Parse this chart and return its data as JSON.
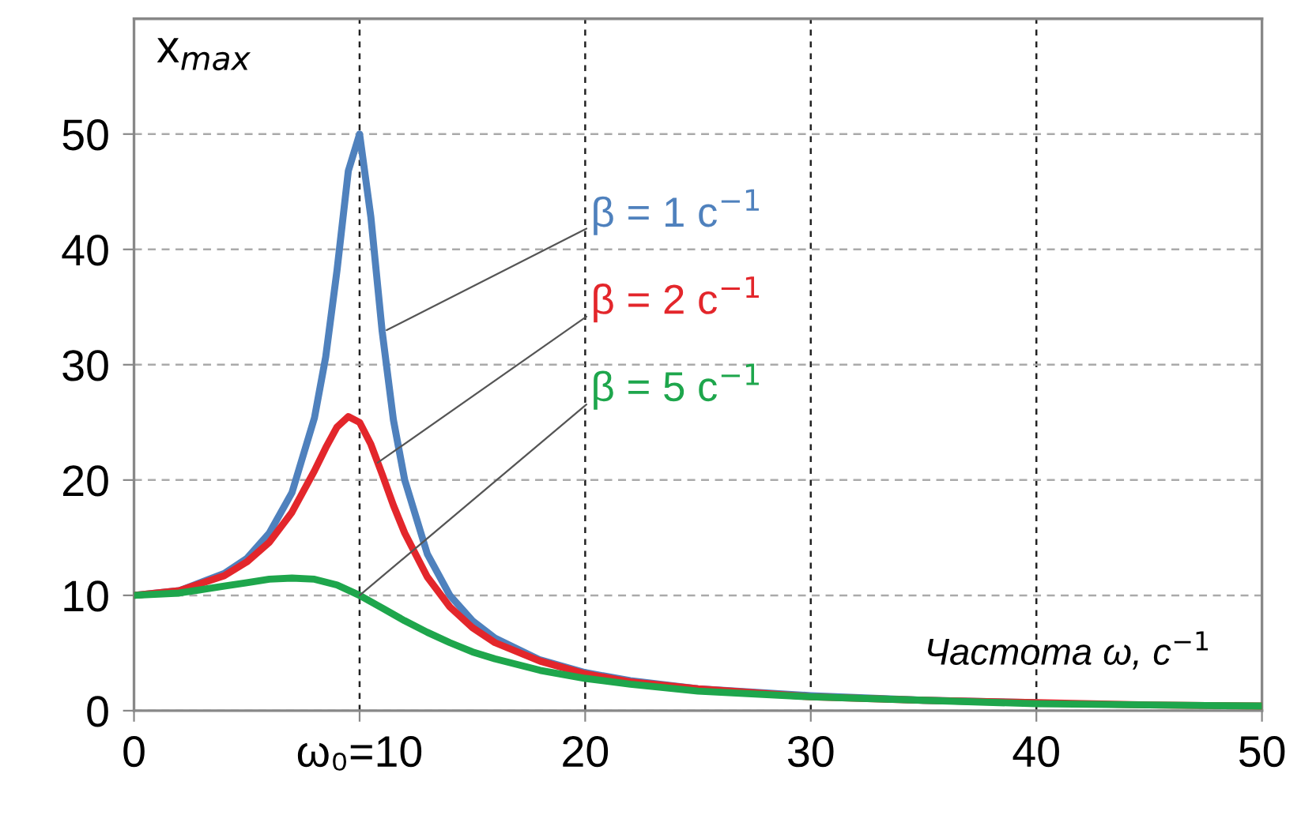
{
  "chart_data": {
    "type": "line",
    "ylabel": "x$_{max}$",
    "xlabel": "Частота ω, c$^{−1}$",
    "xlim": [
      0,
      50
    ],
    "xticks": [
      0,
      {
        "value": 10,
        "label": "ω₀=10"
      },
      20,
      30,
      40,
      50
    ],
    "ylim": [
      0,
      60
    ],
    "yticks": [
      0,
      10,
      20,
      30,
      40,
      50
    ],
    "grid": true,
    "marker": "none",
    "line_style": "solid",
    "series": [
      {
        "color": "#4f81bd",
        "x": [
          0,
          2,
          4,
          5,
          6,
          7,
          8,
          8.5,
          9,
          9.5,
          10,
          10.5,
          11,
          11.5,
          12,
          13,
          14,
          15,
          16,
          18,
          20,
          22,
          25,
          30,
          35,
          40
        ],
        "values": [
          10,
          10.4,
          11.9,
          13.2,
          15.4,
          18.9,
          25.4,
          30.7,
          38.2,
          46.8,
          50,
          42.8,
          32.9,
          25.2,
          20,
          13.6,
          10,
          7.8,
          6.3,
          4.4,
          3.3,
          2.6,
          1.9,
          1.3,
          0.9,
          0.7
        ]
      },
      {
        "color": "#e3262b",
        "x": [
          0,
          2,
          4,
          5,
          6,
          7,
          8,
          8.5,
          9,
          9.5,
          10,
          10.5,
          11,
          11.5,
          12,
          13,
          14,
          15,
          16,
          18,
          20,
          22,
          25,
          30,
          35,
          40,
          45,
          50
        ],
        "values": [
          10,
          10.4,
          11.7,
          12.9,
          14.6,
          17.2,
          20.8,
          22.8,
          24.6,
          25.5,
          25,
          23.1,
          20.5,
          17.8,
          15.4,
          11.6,
          9,
          7.2,
          5.9,
          4.3,
          3.2,
          2.5,
          1.9,
          1.2,
          0.9,
          0.7,
          0.5,
          0.4
        ]
      },
      {
        "color": "#1ea64c",
        "x": [
          0,
          2,
          4,
          5,
          6,
          7,
          8,
          9,
          10,
          11,
          12,
          13,
          14,
          15,
          16,
          18,
          20,
          22,
          25,
          30,
          35,
          40,
          45,
          50
        ],
        "values": [
          10,
          10.2,
          10.8,
          11.1,
          11.4,
          11.5,
          11.4,
          10.9,
          10,
          8.9,
          7.8,
          6.8,
          5.9,
          5.1,
          4.5,
          3.5,
          2.8,
          2.3,
          1.7,
          1.2,
          0.9,
          0.6,
          0.5,
          0.4
        ]
      }
    ],
    "annotations": [
      {
        "text": "β = 1 c$^{−1}$",
        "x": 11.2,
        "y": 33
      },
      {
        "text": "β = 2 c$^{−1}$",
        "x": 10.8,
        "y": 21.5
      },
      {
        "text": "β = 5 c$^{−1}$",
        "x": 10,
        "y": 10
      }
    ]
  }
}
